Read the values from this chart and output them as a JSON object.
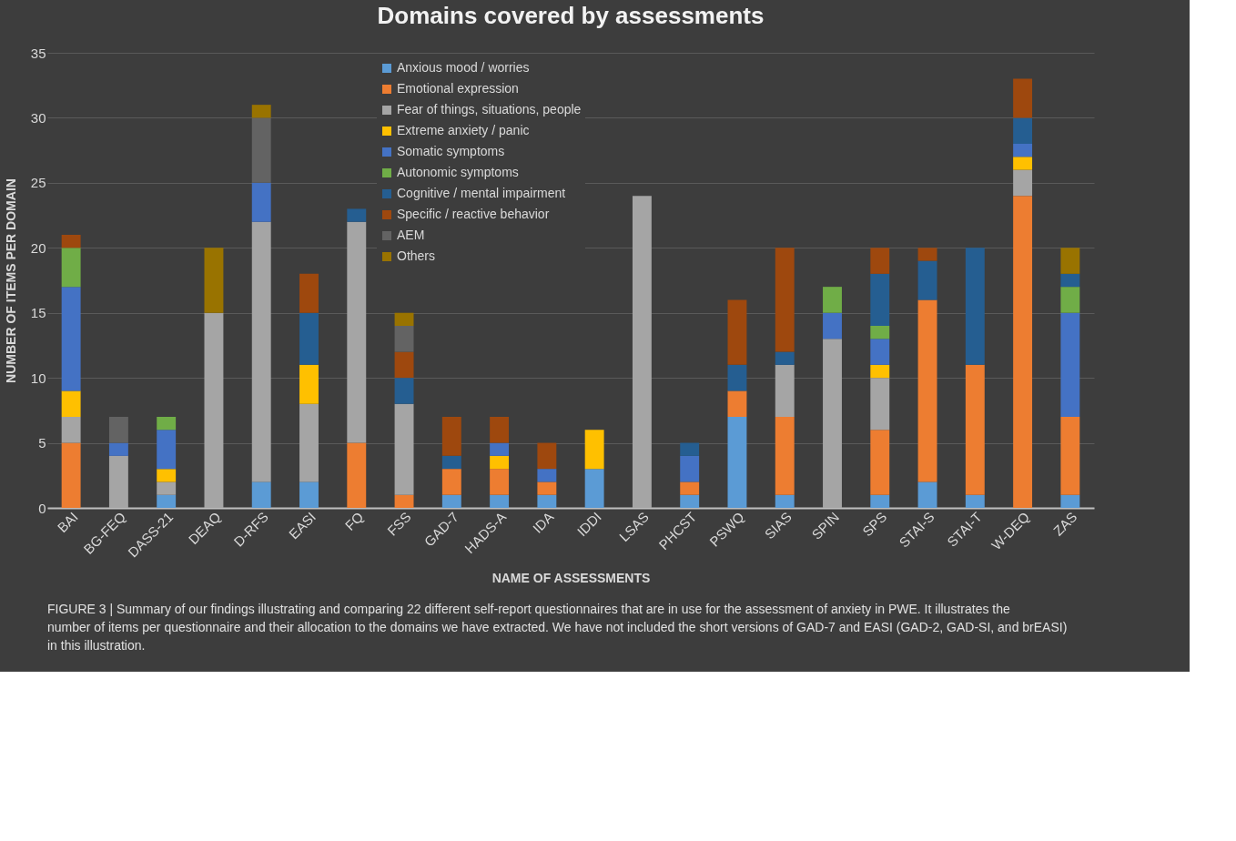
{
  "chart_data": {
    "type": "bar",
    "stacked": true,
    "title": "Domains covered by assessments",
    "xlabel": "NAME OF ASSESSMENTS",
    "ylabel": "NUMBER OF ITEMS  PER DOMAIN",
    "categories": [
      "BAI",
      "BG-FEQ",
      "DASS-21",
      "DEAQ",
      "D-RFS",
      "EASI",
      "FQ",
      "FSS",
      "GAD-7",
      "HADS-A",
      "IDA",
      "IDDI",
      "LSAS",
      "PHCST",
      "PSWQ",
      "SIAS",
      "SPIN",
      "SPS",
      "STAI-S",
      "STAI-T",
      "W-DEQ",
      "ZAS"
    ],
    "series": [
      {
        "name": "Anxious mood / worries",
        "color": "#5b9bd5",
        "values": [
          0,
          0,
          1,
          0,
          2,
          2,
          0,
          0,
          1,
          1,
          1,
          3,
          0,
          1,
          7,
          1,
          0,
          1,
          2,
          1,
          0,
          1
        ]
      },
      {
        "name": "Emotional expression",
        "color": "#ed7d31",
        "values": [
          5,
          0,
          0,
          0,
          0,
          0,
          5,
          1,
          2,
          2,
          1,
          0,
          0,
          1,
          2,
          6,
          0,
          5,
          14,
          10,
          24,
          6
        ]
      },
      {
        "name": "Fear of things, situations, people",
        "color": "#a5a5a5",
        "values": [
          2,
          4,
          1,
          15,
          20,
          6,
          17,
          7,
          0,
          0,
          0,
          0,
          24,
          0,
          0,
          4,
          13,
          4,
          0,
          0,
          2,
          0
        ]
      },
      {
        "name": "Extreme anxiety / panic",
        "color": "#ffc000",
        "values": [
          2,
          0,
          1,
          0,
          0,
          3,
          0,
          0,
          0,
          1,
          0,
          3,
          0,
          0,
          0,
          0,
          0,
          1,
          0,
          0,
          1,
          0
        ]
      },
      {
        "name": "Somatic symptoms",
        "color": "#4472c4",
        "values": [
          8,
          1,
          3,
          0,
          3,
          0,
          0,
          0,
          0,
          1,
          1,
          0,
          0,
          2,
          0,
          0,
          2,
          2,
          0,
          0,
          1,
          8
        ]
      },
      {
        "name": "Autonomic symptoms",
        "color": "#70ad47",
        "values": [
          3,
          0,
          1,
          0,
          0,
          0,
          0,
          0,
          0,
          0,
          0,
          0,
          0,
          0,
          0,
          0,
          2,
          1,
          0,
          0,
          0,
          2
        ]
      },
      {
        "name": "Cognitive / mental impairment",
        "color": "#255e91",
        "values": [
          0,
          0,
          0,
          0,
          0,
          4,
          1,
          2,
          1,
          0,
          0,
          0,
          0,
          1,
          2,
          1,
          0,
          4,
          3,
          9,
          2,
          1
        ]
      },
      {
        "name": "Specific / reactive behavior",
        "color": "#9e480e",
        "values": [
          1,
          0,
          0,
          0,
          0,
          3,
          0,
          2,
          3,
          2,
          2,
          0,
          0,
          0,
          5,
          8,
          0,
          2,
          1,
          0,
          3,
          0
        ]
      },
      {
        "name": "AEM",
        "color": "#636363",
        "values": [
          0,
          2,
          0,
          0,
          5,
          0,
          0,
          2,
          0,
          0,
          0,
          0,
          0,
          0,
          0,
          0,
          0,
          0,
          0,
          0,
          0,
          0
        ]
      },
      {
        "name": "Others",
        "color": "#997300",
        "values": [
          0,
          0,
          0,
          5,
          1,
          0,
          0,
          1,
          0,
          0,
          0,
          0,
          0,
          0,
          0,
          0,
          0,
          0,
          0,
          0,
          0,
          2
        ]
      }
    ],
    "ylim": [
      0,
      35
    ],
    "yticks": [
      0,
      5,
      10,
      15,
      20,
      25,
      30,
      35
    ],
    "grid": "y",
    "legend": "top",
    "annotations": [
      "FIGURE 3 | Summary of our findings illustrating and comparing 22 different self-report questionnaires that are in use for the assessment of anxiety in PWE. It illustrates the number of items per questionnaire and their allocation to the domains we have extracted. We have not included the short versions of GAD-7 and EASI (GAD-2, GAD-SI, and brEASI) in this illustration."
    ]
  }
}
